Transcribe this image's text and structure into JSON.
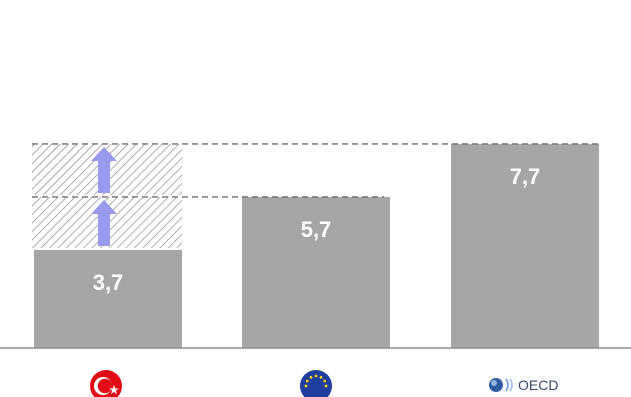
{
  "chart_data": {
    "type": "bar",
    "categories": [
      "Türkiye",
      "EU",
      "OECD"
    ],
    "values": [
      3.7,
      5.7,
      7.7
    ],
    "value_labels": [
      "3,7",
      "5,7",
      "7,7"
    ],
    "ylim": [
      0,
      10
    ],
    "grid": false,
    "bar_color": "#a6a6a6",
    "gap_fill_color": "#a6a6a6",
    "arrow_color": "#9999ee",
    "reference_lines": [
      {
        "value": 5.7,
        "style": "dashed"
      },
      {
        "value": 7.7,
        "style": "dashed"
      }
    ],
    "category_icons": [
      "turkey-flag-icon",
      "eu-flag-icon",
      "oecd-logo-icon"
    ],
    "oecd_logo_text": "OECD"
  }
}
